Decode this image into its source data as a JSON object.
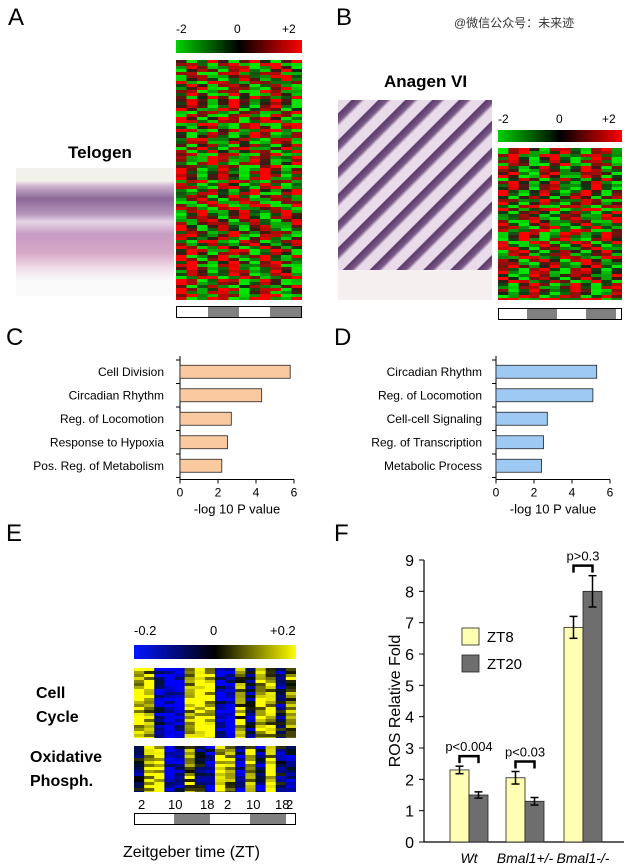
{
  "watermark": "@微信公众号：未来迹",
  "panels": {
    "A": {
      "label": "A",
      "title": "Telogen",
      "scale": {
        "min": "-2",
        "mid": "0",
        "max": "+2"
      }
    },
    "B": {
      "label": "B",
      "title": "Anagen VI",
      "scale": {
        "min": "-2",
        "mid": "0",
        "max": "+2"
      }
    },
    "C": {
      "label": "C",
      "xlabel": "-log 10 P value"
    },
    "D": {
      "label": "D",
      "xlabel": "-log 10 P value"
    },
    "E": {
      "label": "E",
      "scale": {
        "min": "-0.2",
        "mid": "0",
        "max": "+0.2"
      },
      "row_groups": [
        {
          "line1": "Cell",
          "line2": "Cycle"
        },
        {
          "line1": "Oxidative",
          "line2": "Phosph."
        }
      ],
      "ticks": [
        "2",
        "10",
        "18",
        "2",
        "10",
        "18",
        "2"
      ],
      "xlabel": "Zeitgeber  time (ZT)"
    },
    "F": {
      "label": "F"
    }
  },
  "chart_data": [
    {
      "id": "C",
      "type": "bar",
      "orientation": "horizontal",
      "categories": [
        "Cell Division",
        "Circadian Rhythm",
        "Reg. of Locomotion",
        "Response to Hypoxia",
        "Pos. Reg. of Metabolism"
      ],
      "values": [
        5.8,
        4.3,
        2.7,
        2.5,
        2.2
      ],
      "xlabel": "-log 10 P value",
      "xlim": [
        0,
        6
      ],
      "xticks": [
        "0",
        "2",
        "4",
        "6"
      ],
      "color": "#f9c9a0"
    },
    {
      "id": "D",
      "type": "bar",
      "orientation": "horizontal",
      "categories": [
        "Circadian Rhythm",
        "Reg. of Locomotion",
        "Cell-cell Signaling",
        "Reg. of Transcription",
        "Metabolic Process"
      ],
      "values": [
        5.3,
        5.1,
        2.7,
        2.5,
        2.4
      ],
      "xlabel": "-log 10 P value",
      "xlim": [
        0,
        6
      ],
      "xticks": [
        "0",
        "2",
        "4",
        "6"
      ],
      "color": "#9ec9f2"
    },
    {
      "id": "F",
      "type": "bar",
      "categories": [
        "Wt",
        "Bmal1+/-",
        "Bmal1-/-"
      ],
      "series": [
        {
          "name": "ZT8",
          "values": [
            2.3,
            2.05,
            6.85
          ],
          "errors": [
            0.12,
            0.2,
            0.35
          ],
          "color": "#ffffb3"
        },
        {
          "name": "ZT20",
          "values": [
            1.5,
            1.3,
            8.0
          ],
          "errors": [
            0.1,
            0.12,
            0.5
          ],
          "color": "#6e6e6e"
        }
      ],
      "ylabel": "ROS Relative Fold",
      "ylim": [
        0,
        9
      ],
      "yticks": [
        "0",
        "1",
        "2",
        "3",
        "4",
        "5",
        "6",
        "7",
        "8",
        "9"
      ],
      "annotations": [
        "p<0.004",
        "p<0.03",
        "p>0.3"
      ]
    }
  ]
}
